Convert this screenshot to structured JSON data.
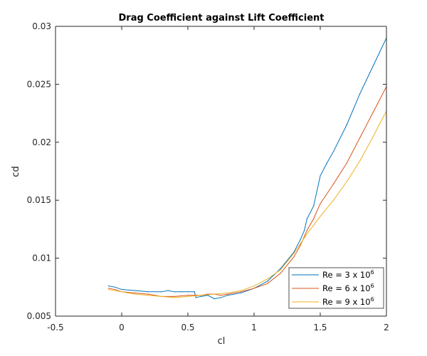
{
  "chart_data": {
    "type": "line",
    "title": "Drag Coefficient against Lift Coefficient",
    "xlabel": "cl",
    "ylabel": "cd",
    "xlim": [
      -0.5,
      2
    ],
    "ylim": [
      0.005,
      0.03
    ],
    "xticks": [
      -0.5,
      0,
      0.5,
      1,
      1.5,
      2
    ],
    "xtick_labels": [
      "-0.5",
      "0",
      "0.5",
      "1",
      "1.5",
      "2"
    ],
    "yticks": [
      0.005,
      0.01,
      0.015,
      0.02,
      0.025,
      0.03
    ],
    "ytick_labels": [
      "0.005",
      "0.01",
      "0.015",
      "0.02",
      "0.025",
      "0.03"
    ],
    "grid": false,
    "legend_position": "bottom-right",
    "series": [
      {
        "name": "Re = 3 x 10",
        "exponent": "6",
        "color": "#0072bd",
        "x": [
          -0.1,
          -0.05,
          0.0,
          0.1,
          0.2,
          0.3,
          0.35,
          0.4,
          0.45,
          0.5,
          0.55,
          0.56,
          0.6,
          0.65,
          0.7,
          0.75,
          0.8,
          0.9,
          1.0,
          1.1,
          1.2,
          1.3,
          1.35,
          1.38,
          1.4,
          1.45,
          1.5,
          1.55,
          1.6,
          1.7,
          1.8,
          1.9,
          2.0
        ],
        "values": [
          0.0076,
          0.0075,
          0.0073,
          0.0072,
          0.0071,
          0.0071,
          0.0072,
          0.0071,
          0.0071,
          0.0071,
          0.0071,
          0.0066,
          0.0067,
          0.0068,
          0.0065,
          0.0066,
          0.0068,
          0.007,
          0.0074,
          0.008,
          0.0091,
          0.0105,
          0.0116,
          0.0124,
          0.0134,
          0.0145,
          0.0171,
          0.0182,
          0.0192,
          0.0215,
          0.0242,
          0.0266,
          0.029
        ]
      },
      {
        "name": "Re = 6 x 10",
        "exponent": "6",
        "color": "#d95319",
        "x": [
          -0.1,
          -0.05,
          0.0,
          0.1,
          0.2,
          0.3,
          0.4,
          0.5,
          0.55,
          0.6,
          0.65,
          0.7,
          0.75,
          0.8,
          0.9,
          1.0,
          1.1,
          1.2,
          1.3,
          1.35,
          1.4,
          1.45,
          1.5,
          1.6,
          1.7,
          1.8,
          1.9,
          2.0
        ],
        "values": [
          0.0074,
          0.0073,
          0.0071,
          0.007,
          0.0069,
          0.0067,
          0.0067,
          0.0068,
          0.0068,
          0.0068,
          0.0069,
          0.0069,
          0.0068,
          0.0069,
          0.0071,
          0.0074,
          0.0078,
          0.0087,
          0.0101,
          0.0111,
          0.0124,
          0.0134,
          0.0147,
          0.0164,
          0.0182,
          0.0204,
          0.0226,
          0.0248
        ]
      },
      {
        "name": "Re = 9 x 10",
        "exponent": "6",
        "color": "#edb120",
        "x": [
          -0.1,
          -0.05,
          0.0,
          0.1,
          0.2,
          0.3,
          0.4,
          0.5,
          0.6,
          0.7,
          0.8,
          0.9,
          1.0,
          1.1,
          1.2,
          1.3,
          1.4,
          1.5,
          1.6,
          1.7,
          1.8,
          1.9,
          2.0
        ],
        "values": [
          0.0073,
          0.0072,
          0.0071,
          0.0069,
          0.0068,
          0.0067,
          0.0066,
          0.0067,
          0.0068,
          0.0069,
          0.007,
          0.0072,
          0.0076,
          0.0082,
          0.009,
          0.0104,
          0.0121,
          0.0136,
          0.015,
          0.0166,
          0.0184,
          0.0205,
          0.0227
        ]
      }
    ]
  }
}
